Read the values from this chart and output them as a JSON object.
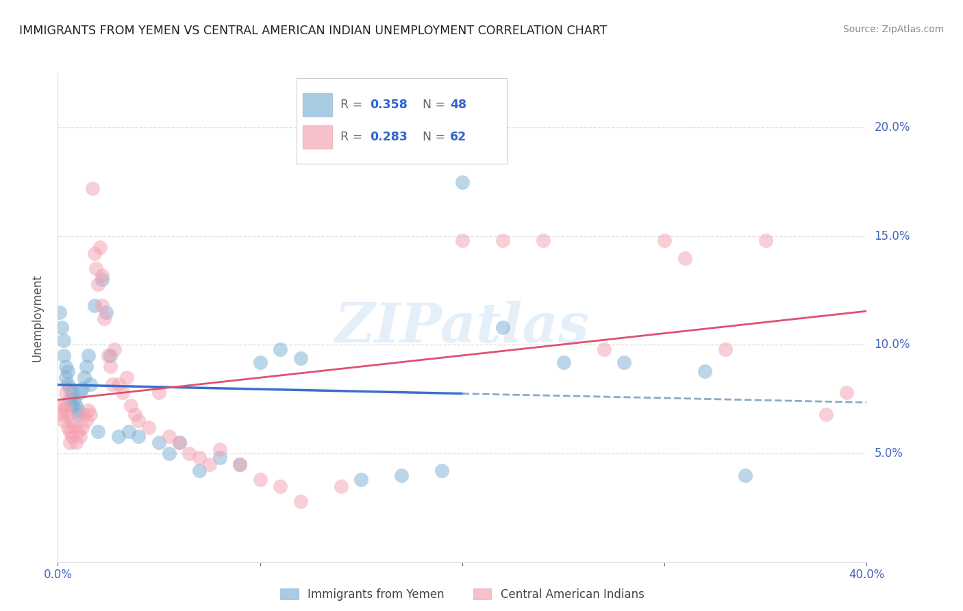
{
  "title": "IMMIGRANTS FROM YEMEN VS CENTRAL AMERICAN INDIAN UNEMPLOYMENT CORRELATION CHART",
  "source": "Source: ZipAtlas.com",
  "ylabel": "Unemployment",
  "xlim": [
    0,
    0.4
  ],
  "ylim": [
    0,
    0.225
  ],
  "legend_r_blue": "0.358",
  "legend_n_blue": "48",
  "legend_r_pink": "0.283",
  "legend_n_pink": "62",
  "blue_color": "#7bafd4",
  "pink_color": "#f4a0b0",
  "trend_blue_color": "#3b6fcc",
  "trend_pink_color": "#e05070",
  "dashed_blue_color": "#88aacc",
  "watermark_text": "ZIPatlas",
  "blue_points": [
    [
      0.001,
      0.115
    ],
    [
      0.002,
      0.108
    ],
    [
      0.003,
      0.102
    ],
    [
      0.003,
      0.095
    ],
    [
      0.004,
      0.09
    ],
    [
      0.004,
      0.085
    ],
    [
      0.005,
      0.088
    ],
    [
      0.005,
      0.082
    ],
    [
      0.006,
      0.08
    ],
    [
      0.006,
      0.075
    ],
    [
      0.007,
      0.078
    ],
    [
      0.007,
      0.072
    ],
    [
      0.008,
      0.075
    ],
    [
      0.009,
      0.072
    ],
    [
      0.01,
      0.07
    ],
    [
      0.01,
      0.068
    ],
    [
      0.011,
      0.078
    ],
    [
      0.012,
      0.08
    ],
    [
      0.013,
      0.085
    ],
    [
      0.014,
      0.09
    ],
    [
      0.015,
      0.095
    ],
    [
      0.016,
      0.082
    ],
    [
      0.018,
      0.118
    ],
    [
      0.02,
      0.06
    ],
    [
      0.022,
      0.13
    ],
    [
      0.024,
      0.115
    ],
    [
      0.026,
      0.095
    ],
    [
      0.03,
      0.058
    ],
    [
      0.035,
      0.06
    ],
    [
      0.04,
      0.058
    ],
    [
      0.05,
      0.055
    ],
    [
      0.055,
      0.05
    ],
    [
      0.06,
      0.055
    ],
    [
      0.07,
      0.042
    ],
    [
      0.08,
      0.048
    ],
    [
      0.09,
      0.045
    ],
    [
      0.1,
      0.092
    ],
    [
      0.11,
      0.098
    ],
    [
      0.12,
      0.094
    ],
    [
      0.15,
      0.038
    ],
    [
      0.17,
      0.04
    ],
    [
      0.19,
      0.042
    ],
    [
      0.2,
      0.175
    ],
    [
      0.22,
      0.108
    ],
    [
      0.25,
      0.092
    ],
    [
      0.28,
      0.092
    ],
    [
      0.32,
      0.088
    ],
    [
      0.34,
      0.04
    ]
  ],
  "pink_points": [
    [
      0.001,
      0.072
    ],
    [
      0.002,
      0.068
    ],
    [
      0.003,
      0.07
    ],
    [
      0.003,
      0.065
    ],
    [
      0.004,
      0.072
    ],
    [
      0.004,
      0.078
    ],
    [
      0.005,
      0.068
    ],
    [
      0.005,
      0.062
    ],
    [
      0.006,
      0.06
    ],
    [
      0.006,
      0.055
    ],
    [
      0.007,
      0.065
    ],
    [
      0.007,
      0.058
    ],
    [
      0.008,
      0.062
    ],
    [
      0.009,
      0.055
    ],
    [
      0.01,
      0.06
    ],
    [
      0.011,
      0.058
    ],
    [
      0.012,
      0.062
    ],
    [
      0.013,
      0.068
    ],
    [
      0.014,
      0.065
    ],
    [
      0.015,
      0.07
    ],
    [
      0.016,
      0.068
    ],
    [
      0.017,
      0.172
    ],
    [
      0.018,
      0.142
    ],
    [
      0.019,
      0.135
    ],
    [
      0.02,
      0.128
    ],
    [
      0.021,
      0.145
    ],
    [
      0.022,
      0.132
    ],
    [
      0.022,
      0.118
    ],
    [
      0.023,
      0.112
    ],
    [
      0.025,
      0.095
    ],
    [
      0.026,
      0.09
    ],
    [
      0.027,
      0.082
    ],
    [
      0.028,
      0.098
    ],
    [
      0.03,
      0.082
    ],
    [
      0.032,
      0.078
    ],
    [
      0.034,
      0.085
    ],
    [
      0.036,
      0.072
    ],
    [
      0.038,
      0.068
    ],
    [
      0.04,
      0.065
    ],
    [
      0.045,
      0.062
    ],
    [
      0.05,
      0.078
    ],
    [
      0.055,
      0.058
    ],
    [
      0.06,
      0.055
    ],
    [
      0.065,
      0.05
    ],
    [
      0.07,
      0.048
    ],
    [
      0.075,
      0.045
    ],
    [
      0.08,
      0.052
    ],
    [
      0.09,
      0.045
    ],
    [
      0.1,
      0.038
    ],
    [
      0.11,
      0.035
    ],
    [
      0.12,
      0.028
    ],
    [
      0.14,
      0.035
    ],
    [
      0.2,
      0.148
    ],
    [
      0.22,
      0.148
    ],
    [
      0.24,
      0.148
    ],
    [
      0.27,
      0.098
    ],
    [
      0.3,
      0.148
    ],
    [
      0.31,
      0.14
    ],
    [
      0.33,
      0.098
    ],
    [
      0.35,
      0.148
    ],
    [
      0.38,
      0.068
    ],
    [
      0.39,
      0.078
    ]
  ],
  "xticks": [
    0.0,
    0.1,
    0.2,
    0.3,
    0.4
  ],
  "yticks": [
    0.05,
    0.1,
    0.15,
    0.2
  ],
  "tick_color": "#4466bb",
  "axis_label_color": "#555555",
  "grid_color": "#dddddd",
  "title_color": "#222222",
  "source_color": "#888888"
}
